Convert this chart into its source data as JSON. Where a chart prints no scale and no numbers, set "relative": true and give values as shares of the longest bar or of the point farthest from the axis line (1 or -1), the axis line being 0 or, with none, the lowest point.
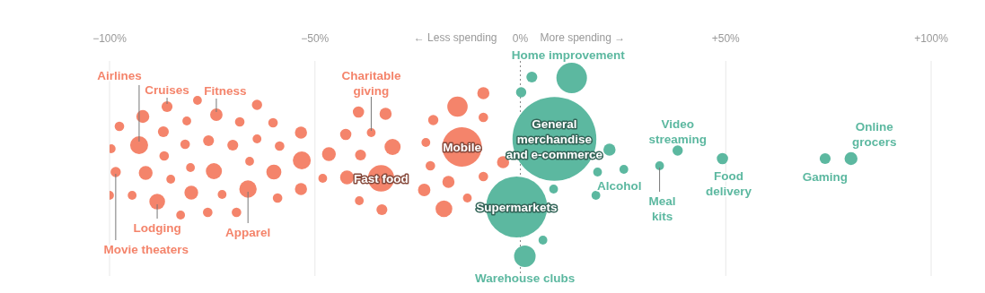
{
  "chart_data": {
    "type": "bubble",
    "relative": true,
    "grid": "x",
    "xlim": [
      -100,
      100
    ],
    "xticks": [
      {
        "value": -100,
        "label": "−100%"
      },
      {
        "value": -50,
        "label": "−50%"
      },
      {
        "value": 0,
        "label": "0%"
      },
      {
        "value": 50,
        "label": "+50%"
      },
      {
        "value": 100,
        "label": "+100%"
      }
    ],
    "ref_lines": [
      {
        "axis": "x",
        "value": 0,
        "line_style": "dotted",
        "color": "#888888"
      }
    ],
    "series": [
      {
        "color": "#f4846b",
        "x": [
          -97.6,
          -91.9,
          -92.8,
          -86.0,
          -78.6,
          -74.0,
          -64.1,
          -99.6,
          -86.9,
          -81.2,
          -68.3,
          -60.2,
          -53.4,
          -81.6,
          -75.9,
          -70.0,
          -64.1,
          -58.6,
          -86.7,
          -98.5,
          -91.2,
          -80.3,
          -74.6,
          -85.1,
          -65.9,
          -60.0,
          -53.2,
          -100.0,
          -94.5,
          -88.4,
          -80.1,
          -72.6,
          -66.3,
          -59.1,
          -53.4,
          -82.7,
          -76.1,
          -69.1,
          -39.4,
          -32.8,
          -42.5,
          -36.3,
          -31.1,
          -46.6,
          -38.9,
          -48.1,
          -42.2,
          -33.9,
          -39.2,
          -33.7,
          -21.2,
          -15.3,
          -9.0,
          -9.0,
          -23.0,
          -14.2,
          -21.9,
          -9.0,
          -17.5,
          -23.4,
          -12.9,
          -18.6,
          -4.2
        ],
        "values": [
          0.725,
          0.78,
          0.62,
          0.835,
          0.87,
          0.79,
          0.845,
          0.6,
          0.695,
          0.755,
          0.75,
          0.745,
          0.69,
          0.625,
          0.645,
          0.62,
          0.655,
          0.615,
          0.56,
          0.47,
          0.465,
          0.495,
          0.475,
          0.43,
          0.53,
          0.47,
          0.535,
          0.34,
          0.34,
          0.305,
          0.355,
          0.345,
          0.375,
          0.325,
          0.375,
          0.23,
          0.245,
          0.245,
          0.805,
          0.795,
          0.68,
          0.69,
          0.61,
          0.57,
          0.565,
          0.435,
          0.44,
          0.435,
          0.31,
          0.26,
          0.76,
          0.835,
          0.91,
          0.775,
          0.635,
          0.61,
          0.505,
          0.445,
          0.415,
          0.37,
          0.325,
          0.265,
          0.525
        ],
        "sizes": [
          0.013,
          0.024,
          0.046,
          0.017,
          0.011,
          0.022,
          0.015,
          0.011,
          0.017,
          0.011,
          0.013,
          0.013,
          0.021,
          0.013,
          0.017,
          0.017,
          0.011,
          0.013,
          0.013,
          0.015,
          0.027,
          0.011,
          0.037,
          0.011,
          0.011,
          0.032,
          0.046,
          0.011,
          0.011,
          0.035,
          0.027,
          0.011,
          0.043,
          0.013,
          0.021,
          0.011,
          0.013,
          0.013,
          0.018,
          0.021,
          0.018,
          0.011,
          0.037,
          0.027,
          0.017,
          0.011,
          0.027,
          0.099,
          0.011,
          0.017,
          0.015,
          0.059,
          0.021,
          0.013,
          0.011,
          0.222,
          0.013,
          0.013,
          0.021,
          0.022,
          0.011,
          0.04,
          0.021
        ]
      },
      {
        "color": "#5cb8a0",
        "x": [
          2.8,
          12.5,
          0.2,
          8.3,
          21.7,
          18.8,
          25.2,
          18.4,
          8.1,
          -0.9,
          5.5,
          1.1,
          33.9,
          38.3,
          49.2,
          74.2,
          80.5
        ],
        "values": [
          1.0,
          0.995,
          0.915,
          0.655,
          0.595,
          0.47,
          0.485,
          0.34,
          0.375,
          0.275,
          0.09,
          0.0,
          0.505,
          0.59,
          0.545,
          0.545,
          0.545
        ],
        "sizes": [
          0.017,
          0.133,
          0.015,
          1,
          0.021,
          0.011,
          0.011,
          0.011,
          0.011,
          0.53,
          0.011,
          0.066,
          0.011,
          0.015,
          0.018,
          0.017,
          0.024
        ]
      }
    ],
    "annotations": [
      "← Less spending",
      "More spending →",
      {
        "text": "Airlines",
        "x": -92.8,
        "y": 0.62
      },
      {
        "text": "Cruises",
        "x": -86.0,
        "y": 0.835
      },
      {
        "text": "Fitness",
        "x": -74.0,
        "y": 0.79
      },
      {
        "text": "Movie theaters",
        "x": -98.5,
        "y": 0.47
      },
      {
        "text": "Lodging",
        "x": -88.4,
        "y": 0.305
      },
      {
        "text": "Apparel",
        "x": -66.3,
        "y": 0.375
      },
      {
        "text": "Charitable\ngiving",
        "x": -36.3,
        "y": 0.69
      },
      {
        "text": "Fast food",
        "x": -33.9,
        "y": 0.435
      },
      {
        "text": "Mobile",
        "x": -14.2,
        "y": 0.61
      },
      {
        "text": "Home improvement",
        "x": 12.5,
        "y": 0.995
      },
      {
        "text": "General\nmerchandise\nand e-commerce",
        "x": 8.3,
        "y": 0.655
      },
      {
        "text": "Supermarkets",
        "x": -0.9,
        "y": 0.275
      },
      {
        "text": "Warehouse clubs",
        "x": 1.1,
        "y": 0.0
      },
      {
        "text": "Alcohol",
        "x": 25.2,
        "y": 0.485
      },
      {
        "text": "Video\nstreaming",
        "x": 38.3,
        "y": 0.59
      },
      {
        "text": "Meal\nkits",
        "x": 33.9,
        "y": 0.505
      },
      {
        "text": "Food\ndelivery",
        "x": 49.2,
        "y": 0.545
      },
      {
        "text": "Gaming",
        "x": 74.2,
        "y": 0.545
      },
      {
        "text": "Online\ngrocers",
        "x": 80.5,
        "y": 0.545
      }
    ]
  }
}
